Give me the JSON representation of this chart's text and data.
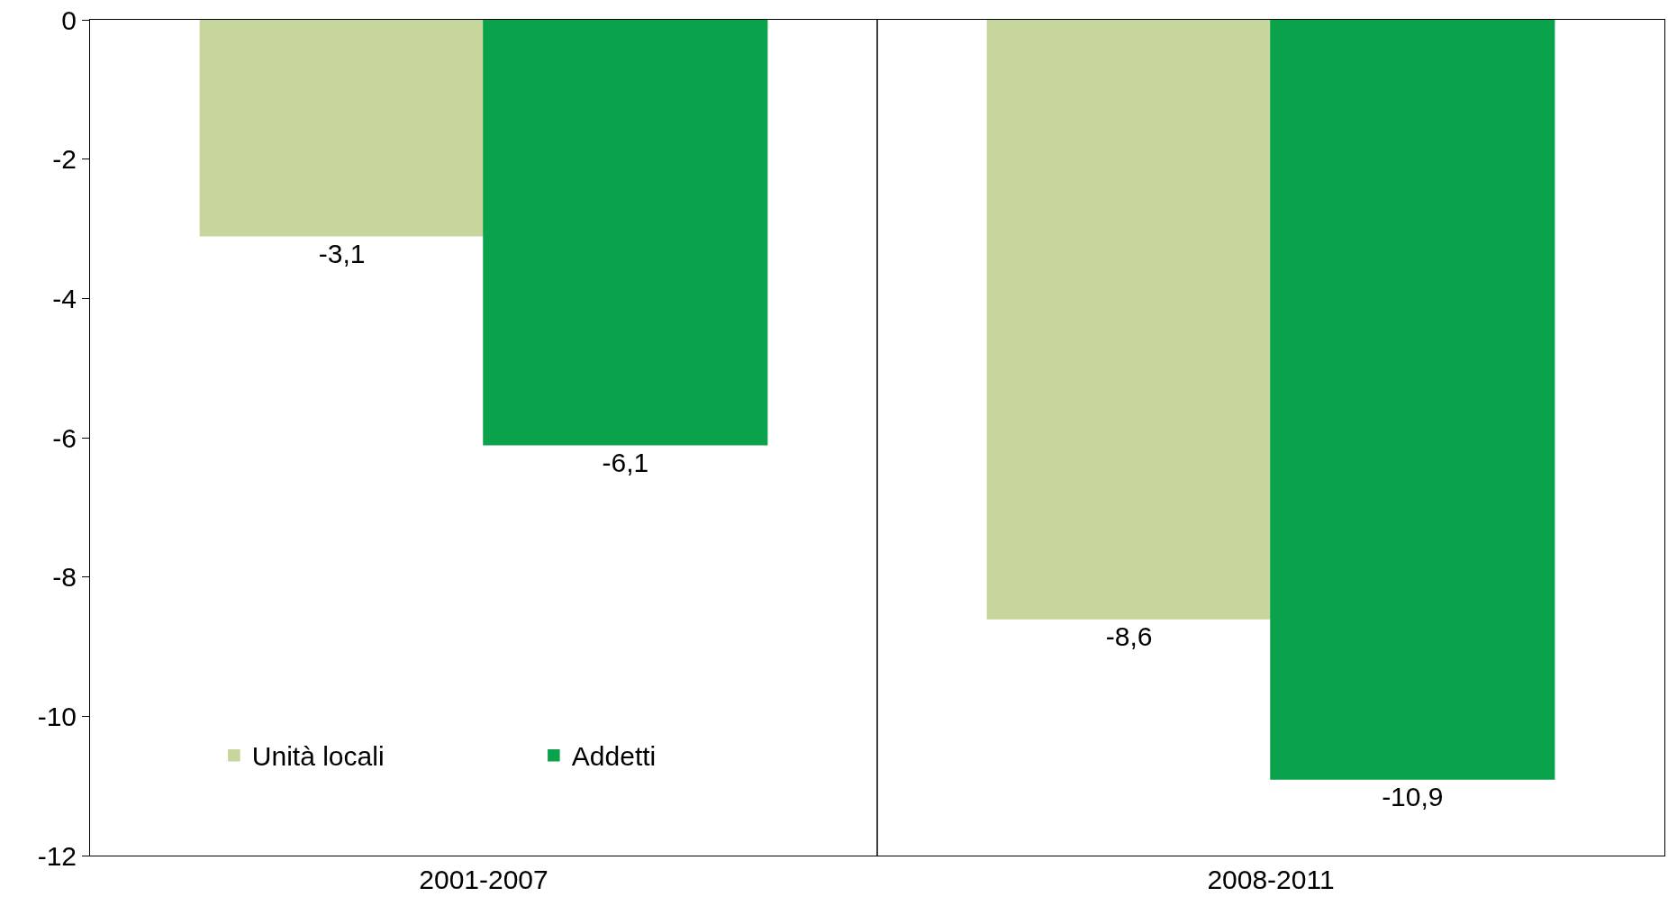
{
  "chart_data": {
    "type": "bar",
    "categories": [
      "2001-2007",
      "2008-2011"
    ],
    "series": [
      {
        "name": "Unità locali",
        "color": "#c6d69c",
        "values": [
          -3.1,
          -8.6
        ]
      },
      {
        "name": "Addetti",
        "color": "#0aa24a",
        "values": [
          -6.1,
          -10.9
        ]
      }
    ],
    "value_labels": [
      [
        "-3,1",
        "-8,6"
      ],
      [
        "-6,1",
        "-10,9"
      ]
    ],
    "ylim": [
      -12,
      0
    ],
    "yticks": [
      0,
      -2,
      -4,
      -6,
      -8,
      -10,
      -12
    ],
    "grid": false,
    "legend": "bottom left"
  }
}
